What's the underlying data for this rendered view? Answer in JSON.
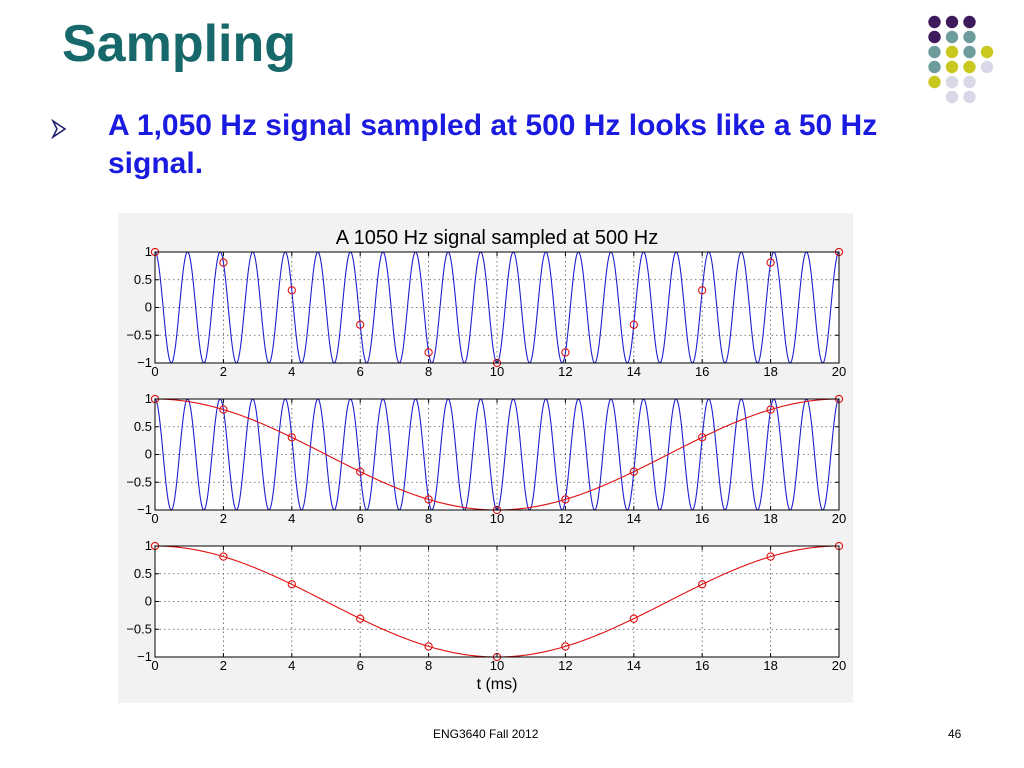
{
  "slide": {
    "title": "Sampling",
    "bullet": "A 1,050 Hz signal sampled at 500 Hz looks like a 50 Hz signal.",
    "footer": "ENG3640 Fall 2012",
    "page_number": "46"
  },
  "decoration": {
    "dot_colors": [
      "#3d1a5b",
      "#6e9c9c",
      "#c8c81e",
      "#d8d8e8"
    ]
  },
  "chart_data": [
    {
      "type": "line",
      "title": "A 1050 Hz signal sampled at 500 Hz",
      "xlabel": "",
      "ylabel": "",
      "xlim": [
        0,
        20
      ],
      "ylim": [
        -1,
        1
      ],
      "x_ticks": [
        "0",
        "2",
        "4",
        "6",
        "8",
        "10",
        "12",
        "14",
        "16",
        "18",
        "20"
      ],
      "y_ticks": [
        "1",
        "0.5",
        "0",
        "−0.5",
        "−1"
      ],
      "grid": true,
      "series": [
        {
          "kind": "continuous",
          "frequency_hz": 1050,
          "color": "#1f1fd0",
          "points": "cos(2π·1050·t)"
        },
        {
          "kind": "samples",
          "color": "#e01010",
          "marker": "circle",
          "x": [
            0,
            2,
            4,
            6,
            8,
            10,
            12,
            14,
            16,
            18,
            20
          ],
          "y": [
            1,
            0.81,
            0.31,
            -0.31,
            -0.81,
            -1,
            -0.81,
            -0.31,
            0.31,
            0.81,
            1
          ]
        }
      ]
    },
    {
      "type": "line",
      "title": "",
      "xlabel": "",
      "ylabel": "",
      "xlim": [
        0,
        20
      ],
      "ylim": [
        -1,
        1
      ],
      "x_ticks": [
        "0",
        "2",
        "4",
        "6",
        "8",
        "10",
        "12",
        "14",
        "16",
        "18",
        "20"
      ],
      "y_ticks": [
        "1",
        "0.5",
        "0",
        "−0.5",
        "−1"
      ],
      "grid": true,
      "series": [
        {
          "kind": "continuous",
          "frequency_hz": 1050,
          "color": "#1f1fd0"
        },
        {
          "kind": "continuous",
          "frequency_hz": 50,
          "color": "#e01010"
        },
        {
          "kind": "samples",
          "color": "#e01010",
          "marker": "circle",
          "x": [
            0,
            2,
            4,
            6,
            8,
            10,
            12,
            14,
            16,
            18,
            20
          ],
          "y": [
            1,
            0.81,
            0.31,
            -0.31,
            -0.81,
            -1,
            -0.81,
            -0.31,
            0.31,
            0.81,
            1
          ]
        }
      ]
    },
    {
      "type": "line",
      "title": "",
      "xlabel": "t (ms)",
      "ylabel": "",
      "xlim": [
        0,
        20
      ],
      "ylim": [
        -1,
        1
      ],
      "x_ticks": [
        "0",
        "2",
        "4",
        "6",
        "8",
        "10",
        "12",
        "14",
        "16",
        "18",
        "20"
      ],
      "y_ticks": [
        "1",
        "0.5",
        "0",
        "−0.5",
        "−1"
      ],
      "grid": true,
      "series": [
        {
          "kind": "continuous",
          "frequency_hz": 50,
          "color": "#e01010"
        },
        {
          "kind": "samples",
          "color": "#e01010",
          "marker": "circle",
          "x": [
            0,
            2,
            4,
            6,
            8,
            10,
            12,
            14,
            16,
            18,
            20
          ],
          "y": [
            1,
            0.81,
            0.31,
            -0.31,
            -0.81,
            -1,
            -0.81,
            -0.31,
            0.31,
            0.81,
            1
          ]
        }
      ]
    }
  ]
}
